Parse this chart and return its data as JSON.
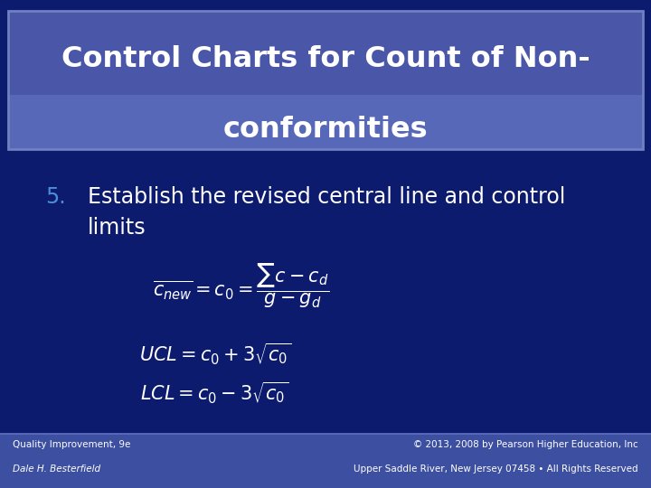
{
  "title_line1": "Control Charts for Count of Non-",
  "title_line2": "conformities",
  "bg_color": "#0D1B6E",
  "header_bg_color": "#4A57A8",
  "header_outline_color": "#7080C0",
  "header_text_color": "#FFFFFF",
  "bullet_number": "5.",
  "bullet_color": "#4A90D9",
  "bullet_text_line1": "Establish the revised central line and control",
  "bullet_text_line2": "limits",
  "bullet_text_color": "#FFFFFF",
  "formula_color": "#FFFFFF",
  "footer_bg": "#3D4FA0",
  "footer_left1": "Quality Improvement, 9e",
  "footer_left2": "Dale H. Besterfield",
  "footer_right1": "© 2013, 2008 by Pearson Higher Education, Inc",
  "footer_right2": "Upper Saddle River, New Jersey 07458 • All Rights Reserved",
  "footer_text_color": "#FFFFFF"
}
